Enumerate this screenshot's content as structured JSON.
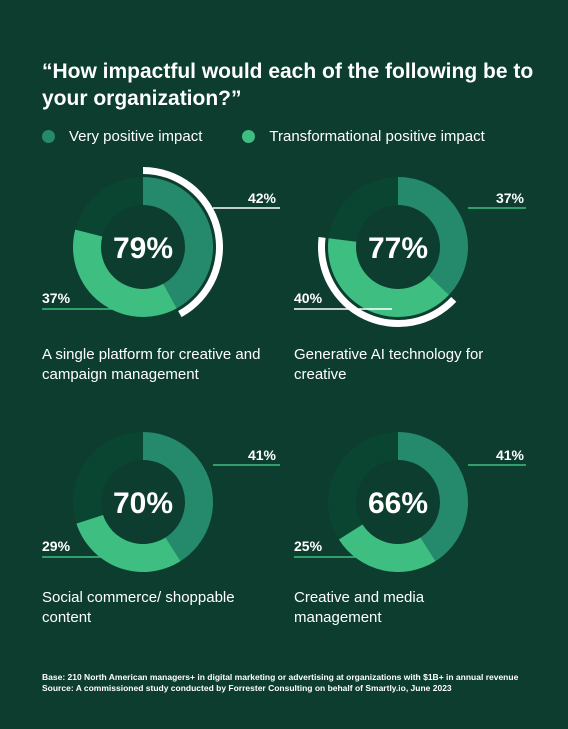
{
  "header": {
    "title": "“How impactful would each of the following be to your organization?”"
  },
  "legend": {
    "items": [
      {
        "label": "Very positive impact",
        "color": "#25896b"
      },
      {
        "label": "Transformational positive impact",
        "color": "#3fbe81"
      }
    ]
  },
  "colors": {
    "background": "#0d3d2e",
    "remainder": "#0a4532",
    "very_positive": "#25896b",
    "transformational": "#3fbe81",
    "highlight_ring": "#ffffff",
    "leader_line": "#3fbe81"
  },
  "chart_data": [
    {
      "type": "pie",
      "caption": "A single platform for creative and campaign management",
      "total_label": "79%",
      "series": [
        {
          "name": "Very positive impact",
          "value": 42,
          "label": "42%"
        },
        {
          "name": "Transformational positive impact",
          "value": 37,
          "label": "37%"
        }
      ],
      "highlight": "very_positive"
    },
    {
      "type": "pie",
      "caption": "Generative AI technology for creative",
      "total_label": "77%",
      "series": [
        {
          "name": "Very positive impact",
          "value": 37,
          "label": "37%"
        },
        {
          "name": "Transformational positive impact",
          "value": 40,
          "label": "40%"
        }
      ],
      "highlight": "transformational"
    },
    {
      "type": "pie",
      "caption": "Social commerce/ shoppable content",
      "total_label": "70%",
      "series": [
        {
          "name": "Very positive impact",
          "value": 41,
          "label": "41%"
        },
        {
          "name": "Transformational positive impact",
          "value": 29,
          "label": "29%"
        }
      ],
      "highlight": "none"
    },
    {
      "type": "pie",
      "caption": "Creative and media management",
      "total_label": "66%",
      "series": [
        {
          "name": "Very positive impact",
          "value": 41,
          "label": "41%"
        },
        {
          "name": "Transformational positive impact",
          "value": 25,
          "label": "25%"
        }
      ],
      "highlight": "none"
    }
  ],
  "footnote": {
    "base": "Base: 210 North American managers+ in digital marketing or advertising at organizations with $1B+ in annual revenue",
    "source": "Source: A commissioned study conducted by Forrester Consulting on behalf of Smartly.io, June 2023"
  }
}
